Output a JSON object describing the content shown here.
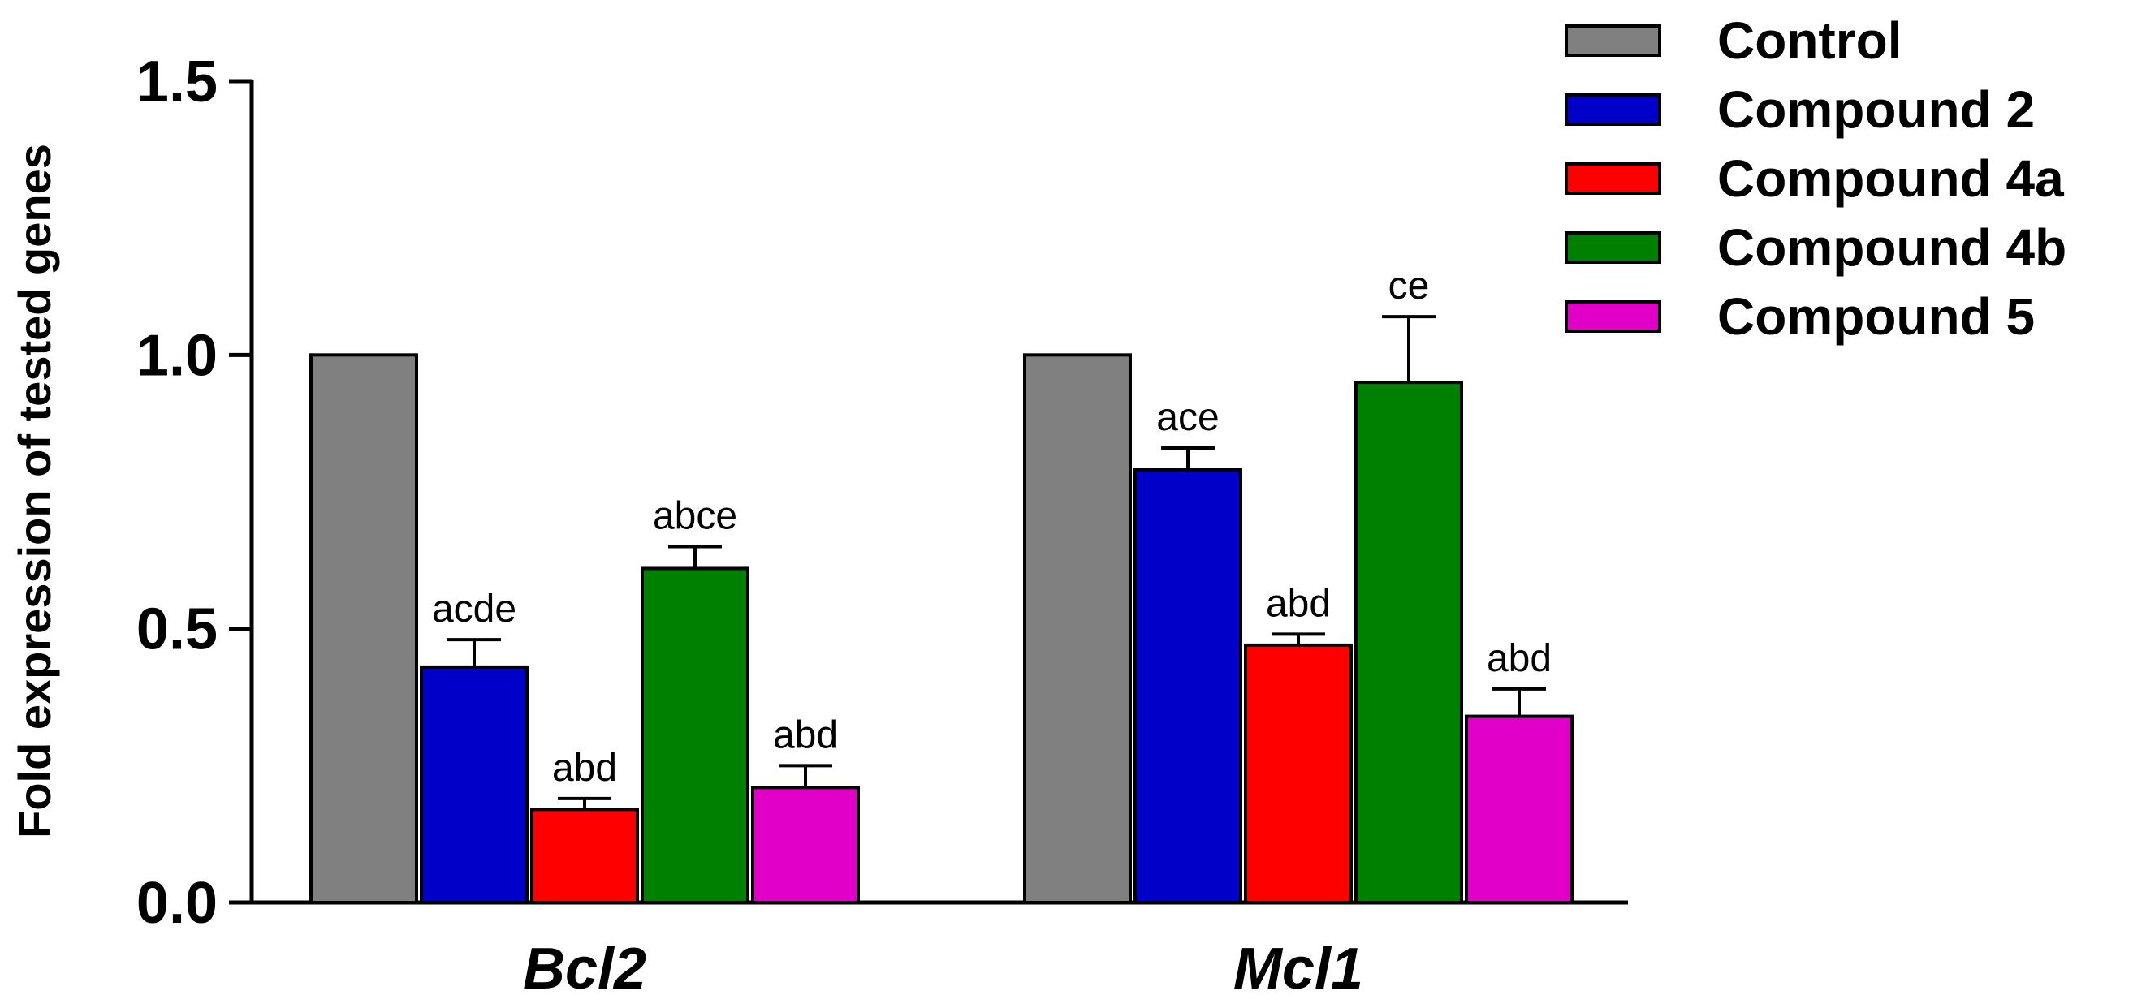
{
  "chart_data": {
    "type": "bar",
    "title": "",
    "xlabel": "",
    "ylabel": "Fold expression of tested genes",
    "ylim": [
      0,
      1.5
    ],
    "yticks": [
      "0.0",
      "0.5",
      "1.0",
      "1.5"
    ],
    "categories": [
      "Bcl2",
      "Mcl1"
    ],
    "legend_position": "top-right",
    "series": [
      {
        "name": "Control",
        "color": "#808080",
        "values": [
          1.0,
          1.0
        ],
        "errors": [
          0,
          0
        ],
        "labels": [
          "",
          ""
        ]
      },
      {
        "name": "Compound 2",
        "color": "#0000c8",
        "values": [
          0.43,
          0.79
        ],
        "errors": [
          0.05,
          0.04
        ],
        "labels": [
          "acde",
          "ace"
        ]
      },
      {
        "name": "Compound 4a",
        "color": "#ff0000",
        "values": [
          0.17,
          0.47
        ],
        "errors": [
          0.02,
          0.02
        ],
        "labels": [
          "abd",
          "abd"
        ]
      },
      {
        "name": "Compound 4b",
        "color": "#008000",
        "values": [
          0.61,
          0.95
        ],
        "errors": [
          0.04,
          0.12
        ],
        "labels": [
          "abce",
          "ce"
        ]
      },
      {
        "name": "Compound 5",
        "color": "#e000c8",
        "values": [
          0.21,
          0.34
        ],
        "errors": [
          0.04,
          0.05
        ],
        "labels": [
          "abd",
          "abd"
        ]
      }
    ]
  }
}
